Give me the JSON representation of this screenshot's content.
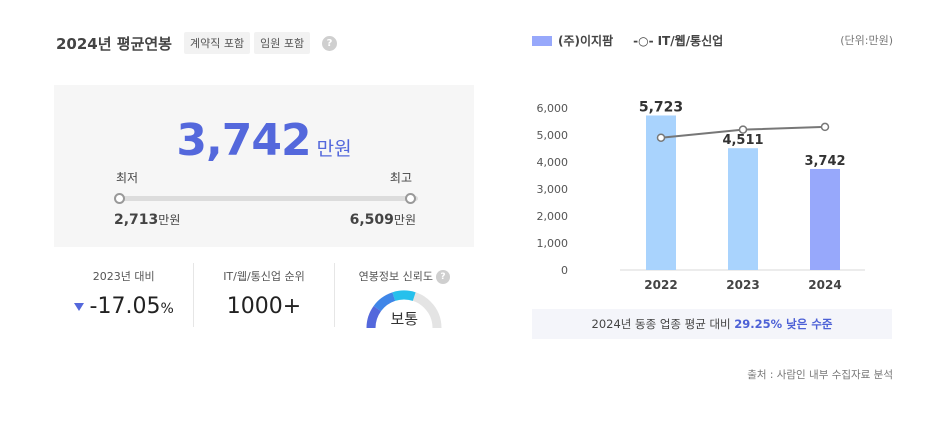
{
  "header": {
    "title": "2024년 평균연봉",
    "tags": [
      "계약직 포함",
      "임원 포함"
    ],
    "help": "?"
  },
  "salary": {
    "average": "3,742",
    "unit": "만원",
    "min_label": "최저",
    "max_label": "최고",
    "min_value": "2,713",
    "max_value": "6,509",
    "value_unit": "만원"
  },
  "stats": [
    {
      "label": "2023년 대비",
      "value": "-17.05",
      "suffix": "%"
    },
    {
      "label": "IT/웹/통신업 순위",
      "value": "1000+"
    },
    {
      "label": "연봉정보 신뢰도",
      "value": "보통"
    }
  ],
  "chart_data": {
    "type": "bar",
    "categories": [
      "2022",
      "2023",
      "2024"
    ],
    "series": [
      {
        "name": "(주)이지팜",
        "type": "bar",
        "values": [
          5723,
          4511,
          3742
        ],
        "value_labels": [
          "5,723",
          "4,511",
          "3,742"
        ],
        "colors": [
          "#a9d3fd",
          "#a9d3fd",
          "#97a8fb"
        ]
      },
      {
        "name": "IT/웹/통신업",
        "type": "line",
        "values": [
          4900,
          5200,
          5300
        ],
        "color": "#777777"
      }
    ],
    "yticks": [
      "0",
      "1,000",
      "2,000",
      "3,000",
      "4,000",
      "5,000",
      "6,000"
    ],
    "ylim": [
      0,
      6000
    ],
    "unit_note": "(단위:만원)",
    "grid": false
  },
  "legend": {
    "bar": "(주)이지팜",
    "line_glyph": "-○-",
    "line": "IT/웹/통신업"
  },
  "summary": {
    "prefix": "2024년 동종 업종 평균 대비",
    "highlight": "29.25% 낮은 수준"
  },
  "source": "출처 : 사람인 내부 수집자료 분석",
  "colors": {
    "accent": "#5468dc",
    "bar": "#a9d3fd",
    "bar_current": "#97a8fb"
  }
}
